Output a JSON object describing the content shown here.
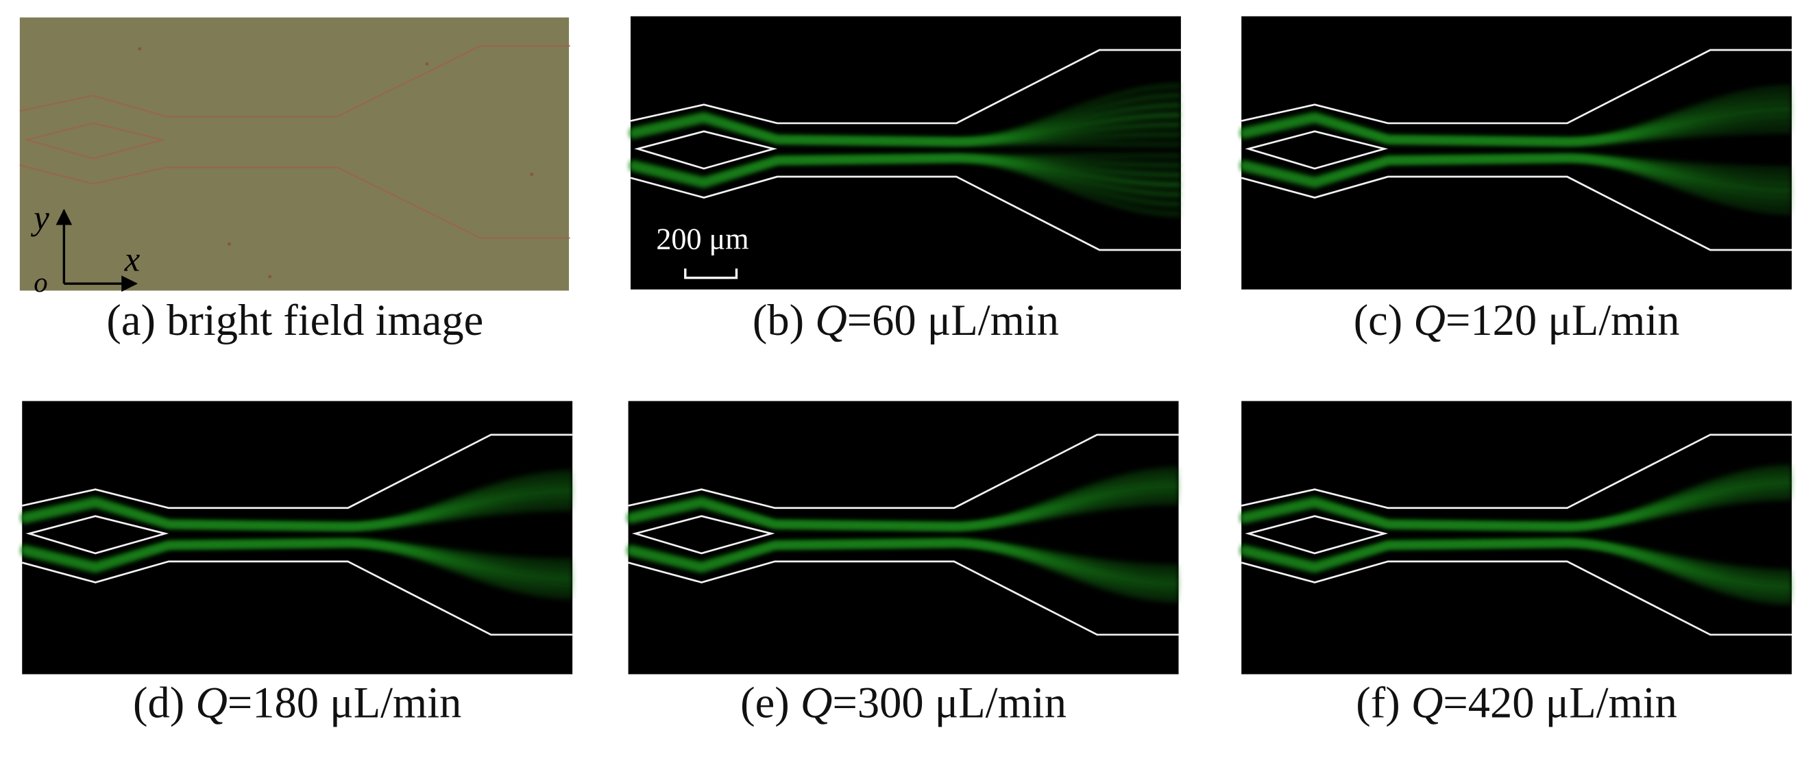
{
  "panels": [
    {
      "caption": "(a) bright field image"
    },
    {
      "prefix": "(b) ",
      "variable": "Q",
      "suffix": "=60 μL/min"
    },
    {
      "prefix": "(c) ",
      "variable": "Q",
      "suffix": "=120 μL/min"
    },
    {
      "prefix": "(d) ",
      "variable": "Q",
      "suffix": "=180 μL/min"
    },
    {
      "prefix": "(e) ",
      "variable": "Q",
      "suffix": "=300 μL/min"
    },
    {
      "prefix": "(f) ",
      "variable": "Q",
      "suffix": "=420 μL/min"
    }
  ],
  "axes": {
    "y": "y",
    "x": "x",
    "origin": "o"
  },
  "scale_bar": "200 μm"
}
